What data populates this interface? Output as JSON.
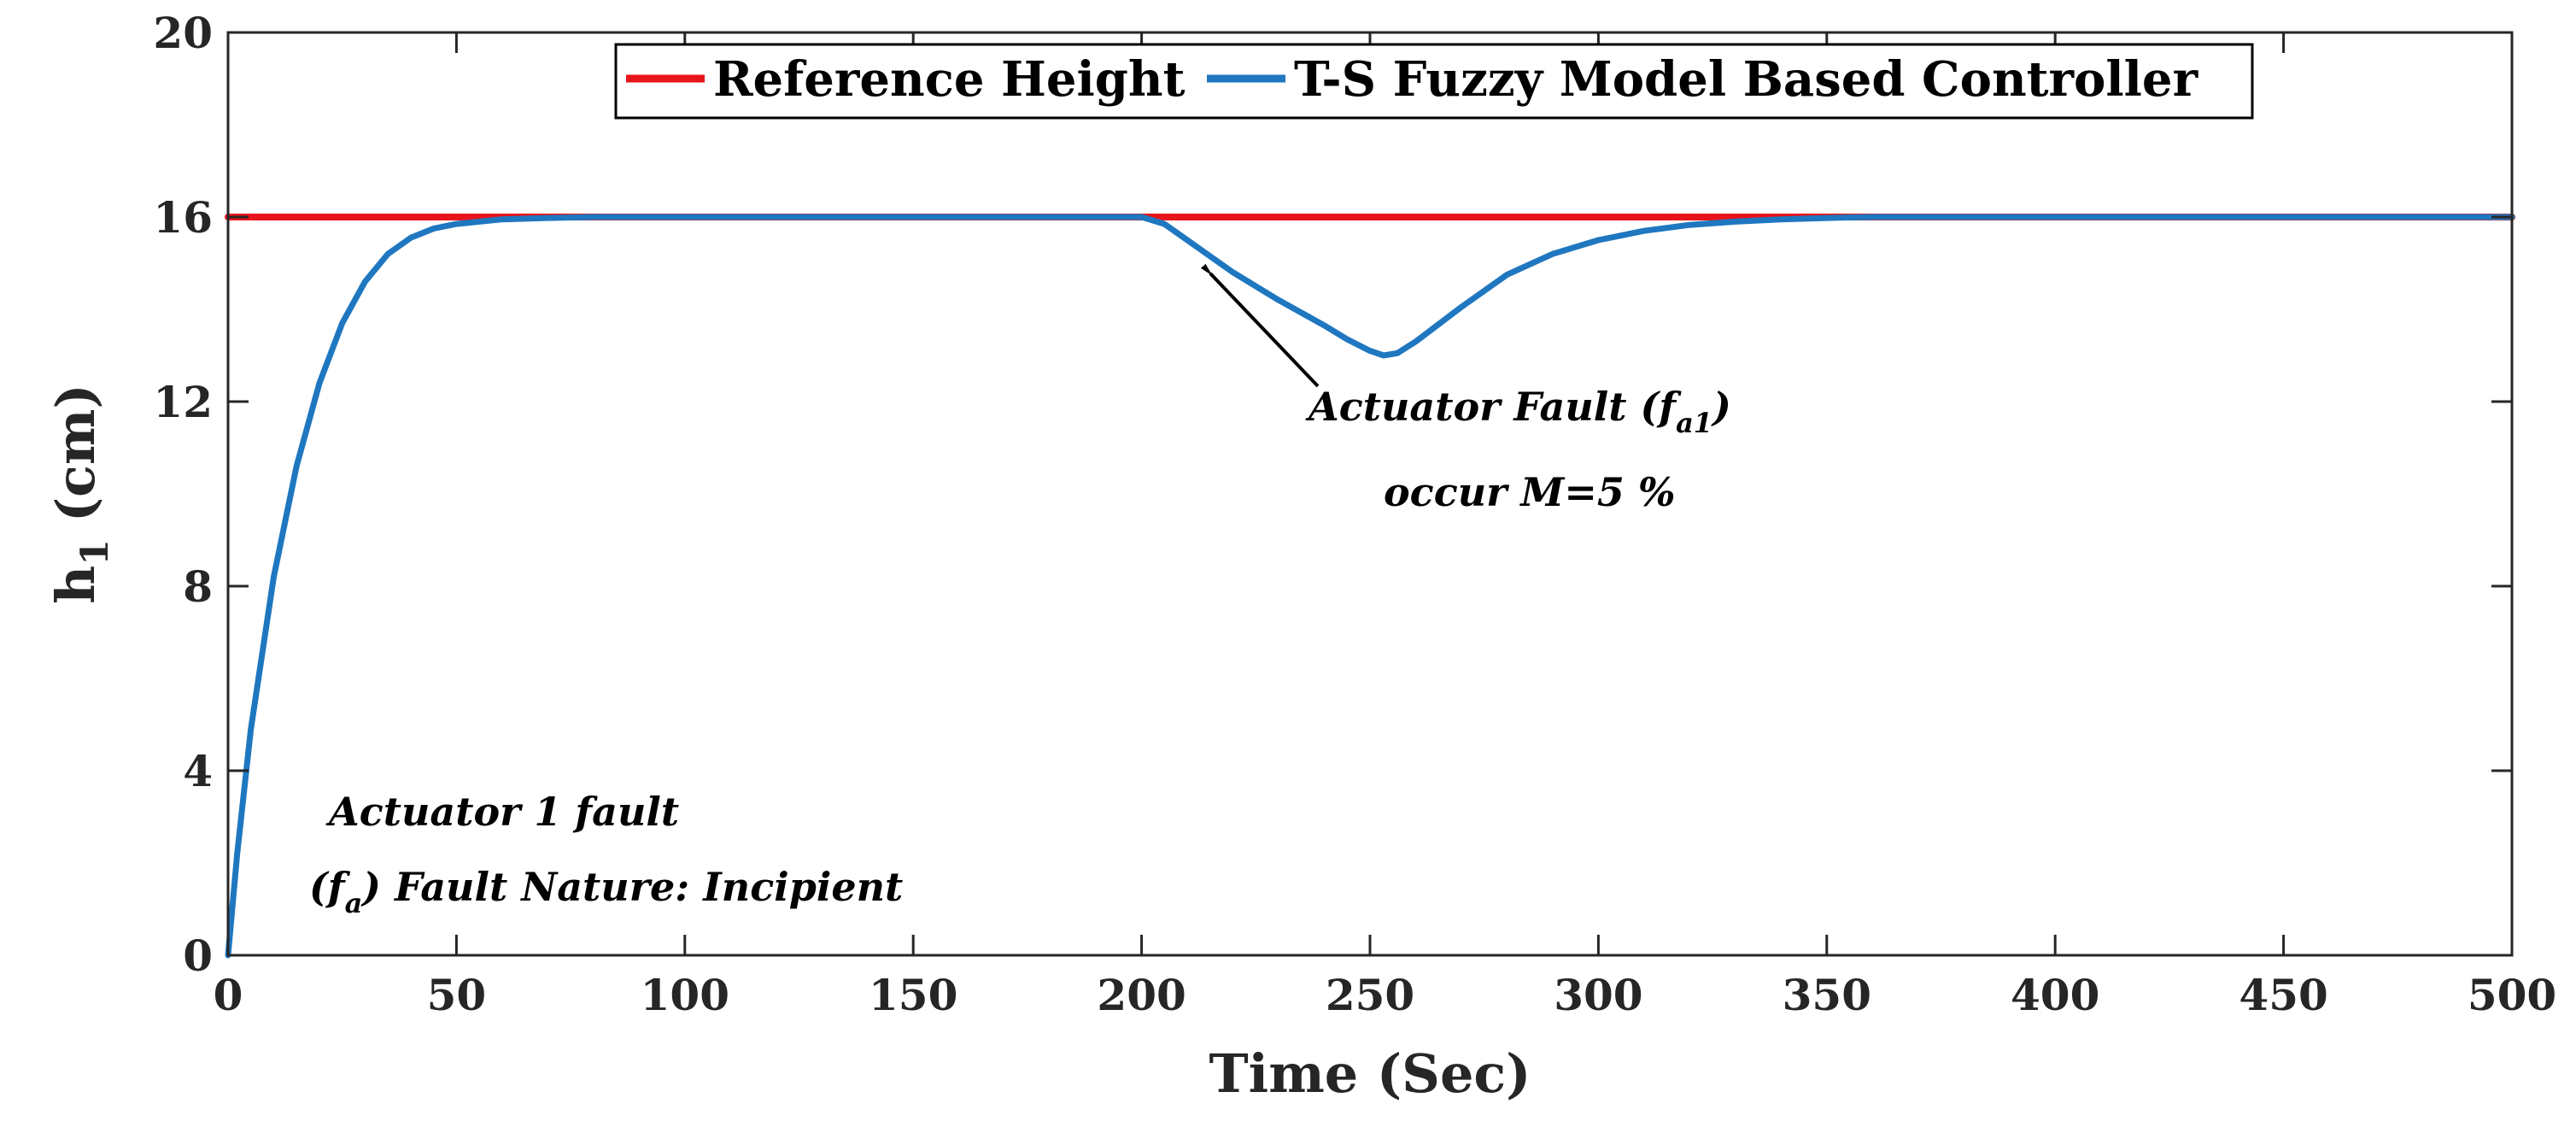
{
  "chart_data": {
    "type": "line",
    "title": "",
    "xlabel": "Time (Sec)",
    "ylabel_main": "h",
    "ylabel_sub": "1",
    "ylabel_unit": "(cm)",
    "xlim": [
      0,
      500
    ],
    "ylim": [
      0,
      20
    ],
    "xticks": [
      0,
      50,
      100,
      150,
      200,
      250,
      300,
      350,
      400,
      450,
      500
    ],
    "yticks": [
      0,
      4,
      8,
      12,
      16,
      20
    ],
    "grid": false,
    "legend": {
      "placement": "top-center",
      "orientation": "horizontal",
      "entries": [
        "Reference Height",
        "T-S Fuzzy Model Based Controller"
      ]
    },
    "series": [
      {
        "name": "Reference Height",
        "color": "#e8141b",
        "x": [
          0,
          500
        ],
        "y": [
          16,
          16
        ]
      },
      {
        "name": "T-S Fuzzy Model Based Controller",
        "color": "#1f77c0",
        "x": [
          0,
          2,
          5,
          10,
          15,
          20,
          25,
          30,
          35,
          40,
          45,
          50,
          60,
          70,
          80,
          90,
          100,
          150,
          200,
          205,
          210,
          220,
          230,
          240,
          245,
          250,
          253,
          256,
          260,
          270,
          280,
          290,
          300,
          310,
          320,
          330,
          340,
          350,
          360,
          380,
          400,
          450,
          500
        ],
        "y": [
          0,
          2.2,
          4.9,
          8.2,
          10.6,
          12.4,
          13.7,
          14.6,
          15.2,
          15.55,
          15.75,
          15.85,
          15.95,
          15.98,
          16,
          16,
          16,
          16,
          16,
          15.85,
          15.5,
          14.8,
          14.2,
          13.65,
          13.35,
          13.1,
          13.0,
          13.05,
          13.3,
          14.05,
          14.75,
          15.2,
          15.5,
          15.7,
          15.83,
          15.9,
          15.95,
          15.98,
          16,
          16,
          16,
          16,
          16
        ]
      }
    ],
    "annotations": [
      {
        "id": "fault-point",
        "line1": "Actuator Fault (f",
        "line1_sub": "a1",
        "line1_end": ")",
        "line2": "occur M=5 %",
        "arrow_to": [
          211,
          15.6
        ],
        "arrow_from": [
          270,
          12.5
        ]
      },
      {
        "id": "fault-info",
        "line1": "Actuator 1 fault",
        "line2_pre": "(f",
        "line2_sub": "a",
        "line2_post": ") Fault Nature: Incipient"
      }
    ]
  }
}
